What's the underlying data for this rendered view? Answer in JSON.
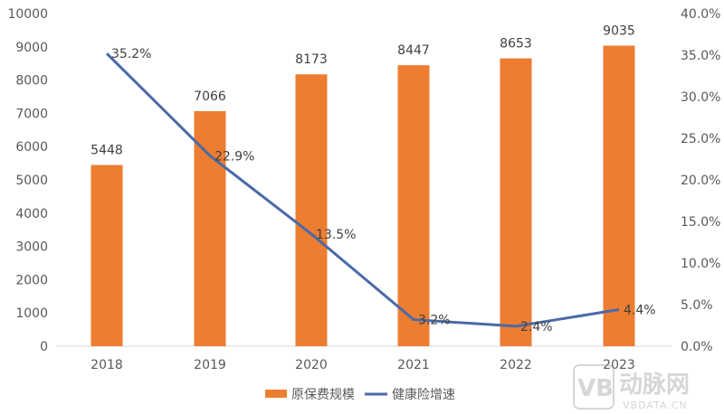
{
  "chart_data": {
    "type": "bar+line",
    "title": "",
    "categories": [
      "2018",
      "2019",
      "2020",
      "2021",
      "2022",
      "2023"
    ],
    "series": [
      {
        "name": "原保费规模",
        "type": "bar",
        "axis": "left",
        "color": "#ED7D31",
        "values": [
          5448,
          7066,
          8173,
          8447,
          8653,
          9035
        ],
        "labels": [
          "5448",
          "7066",
          "8173",
          "8447",
          "8653",
          "9035"
        ]
      },
      {
        "name": "健康险增速",
        "type": "line",
        "axis": "right",
        "color": "#4472C4",
        "values": [
          35.2,
          22.9,
          13.5,
          3.2,
          2.4,
          4.4
        ],
        "labels": [
          "35.2%",
          "22.9%",
          "13.5%",
          "3.2%",
          "2.4%",
          "4.4%"
        ]
      }
    ],
    "left_axis": {
      "min": 0,
      "max": 10000,
      "step": 1000,
      "ticks": [
        "0",
        "1000",
        "2000",
        "3000",
        "4000",
        "5000",
        "6000",
        "7000",
        "8000",
        "9000",
        "10000"
      ]
    },
    "right_axis": {
      "min": 0,
      "max": 40,
      "step": 5,
      "ticks": [
        "0.0%",
        "5.0%",
        "10.0%",
        "15.0%",
        "20.0%",
        "25.0%",
        "30.0%",
        "35.0%",
        "40.0%"
      ]
    },
    "xlabel": "",
    "ylabel": "",
    "grid": false,
    "legend_position": "bottom"
  },
  "legend": {
    "bar_label": "原保费规模",
    "line_label": "健康险增速"
  },
  "watermark": {
    "logo": "VB",
    "cn": "动脉网",
    "en": "VBDATA.CN"
  }
}
